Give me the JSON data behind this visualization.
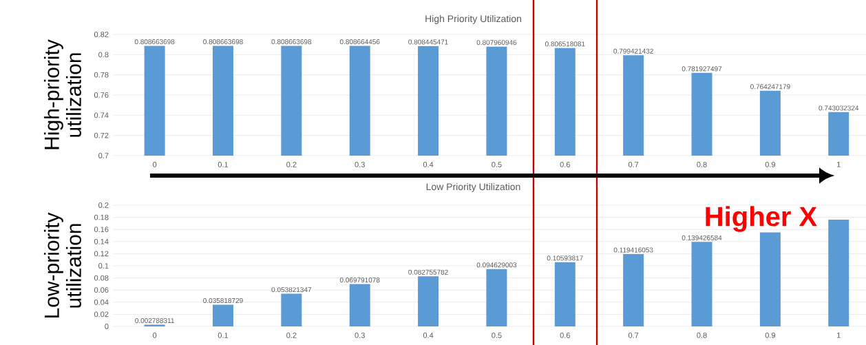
{
  "chart_data": [
    {
      "type": "bar",
      "title": "High Priority Utilization",
      "ylabel": "High-priority utilization",
      "categories": [
        "0",
        "0.1",
        "0.2",
        "0.3",
        "0.4",
        "0.5",
        "0.6",
        "0.7",
        "0.8",
        "0.9",
        "1"
      ],
      "values": [
        0.808663698,
        0.808663698,
        0.808663698,
        0.808664456,
        0.808445471,
        0.807960946,
        0.806518081,
        0.799421432,
        0.781927497,
        0.764247179,
        0.743032324
      ],
      "color": "#5b9bd5",
      "ylim": [
        0.7,
        0.82
      ],
      "yticks": [
        0.7,
        0.72,
        0.74,
        0.76,
        0.78,
        0.8,
        0.82
      ],
      "grid": "y",
      "data_labels": true
    },
    {
      "type": "bar",
      "title": "Low Priority Utilization",
      "ylabel": "Low-priority utilization",
      "categories": [
        "0",
        "0.1",
        "0.2",
        "0.3",
        "0.4",
        "0.5",
        "0.6",
        "0.7",
        "0.8",
        "0.9",
        "1"
      ],
      "values": [
        0.002788311,
        0.035818729,
        0.053821347,
        0.069791078,
        0.082755782,
        0.094629003,
        0.10593817,
        0.119416053,
        0.139426584,
        0.155,
        0.176
      ],
      "value_labels": [
        "0.002788311",
        "0.035818729",
        "0.053821347",
        "0.069791078",
        "0.082755782",
        "0.094629003",
        "0.10593817",
        "0.119416053",
        "0.139426584",
        null,
        null
      ],
      "color": "#5b9bd5",
      "ylim": [
        0,
        0.2
      ],
      "yticks": [
        0,
        0.02,
        0.04,
        0.06,
        0.08,
        0.1,
        0.12,
        0.14,
        0.16,
        0.18,
        0.2
      ],
      "grid": "y",
      "annotations": [
        "Higher X"
      ]
    }
  ]
}
